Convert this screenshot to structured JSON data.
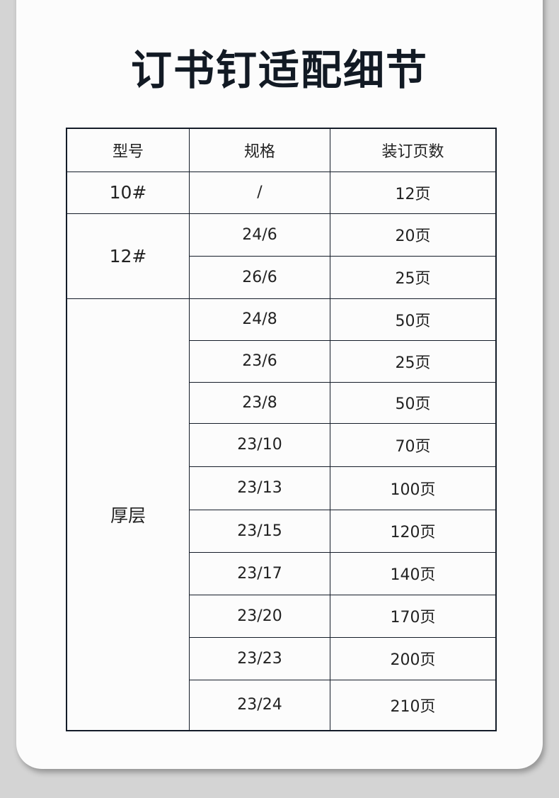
{
  "title": "订书钉适配细节",
  "table": {
    "headers": [
      "型号",
      "规格",
      "装订页数"
    ],
    "groups": [
      {
        "model": "10#",
        "rows": [
          {
            "spec": "/",
            "pages": "12页"
          }
        ]
      },
      {
        "model": "12#",
        "rows": [
          {
            "spec": "24/6",
            "pages": "20页"
          },
          {
            "spec": "26/6",
            "pages": "25页"
          }
        ]
      },
      {
        "model": "厚层",
        "rows": [
          {
            "spec": "24/8",
            "pages": "50页"
          },
          {
            "spec": "23/6",
            "pages": "25页"
          },
          {
            "spec": "23/8",
            "pages": "50页"
          },
          {
            "spec": "23/10",
            "pages": "70页"
          },
          {
            "spec": "23/13",
            "pages": "100页"
          },
          {
            "spec": "23/15",
            "pages": "120页"
          },
          {
            "spec": "23/17",
            "pages": "140页"
          },
          {
            "spec": "23/20",
            "pages": "170页"
          },
          {
            "spec": "23/23",
            "pages": "200页"
          },
          {
            "spec": "23/24",
            "pages": "210页"
          }
        ]
      }
    ]
  }
}
